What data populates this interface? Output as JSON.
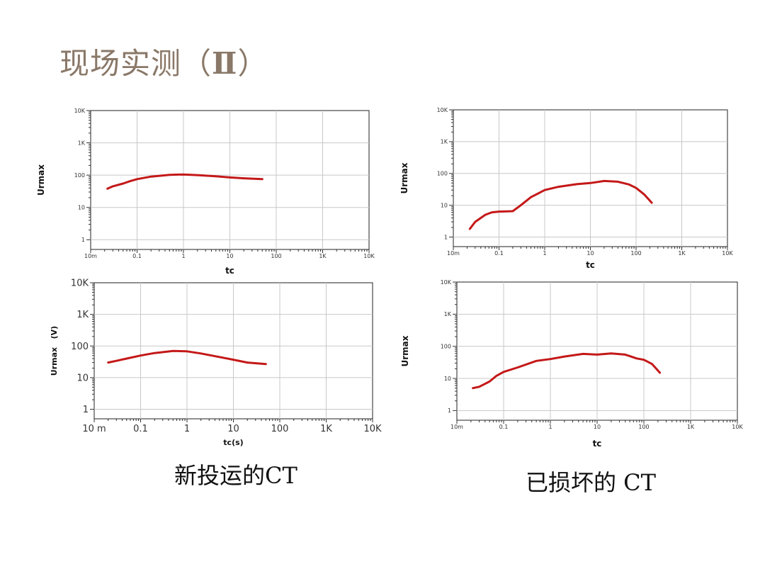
{
  "title": "现场实测（Ⅱ）",
  "title_main": "现场实测",
  "title_open": "（",
  "title_roman": "Ⅱ",
  "title_close": "）",
  "captions": {
    "left": "新投运的CT",
    "right": "已损坏的 CT"
  },
  "colors": {
    "curve": "#c41818",
    "title": "#8a7868"
  },
  "chart_data": [
    {
      "type": "line",
      "xscale": "log",
      "yscale": "log",
      "xlim": [
        0.01,
        10000
      ],
      "ylim": [
        0.5,
        10000
      ],
      "xticks": [
        "10m",
        "0.1",
        "1",
        "10",
        "100",
        "1K",
        "10K"
      ],
      "yticks": [
        "1",
        "10",
        "100",
        "1K",
        "10K"
      ],
      "xlabel": "tc",
      "ylabel": "Urmax",
      "grid": true,
      "series": [
        {
          "x": [
            0.023,
            0.03,
            0.05,
            0.07,
            0.1,
            0.2,
            0.5,
            1,
            2,
            5,
            10,
            20,
            50
          ],
          "y": [
            38,
            45,
            55,
            65,
            75,
            90,
            102,
            105,
            100,
            92,
            85,
            80,
            75
          ]
        }
      ]
    },
    {
      "type": "line",
      "xscale": "log",
      "yscale": "log",
      "xlim": [
        0.01,
        10000
      ],
      "ylim": [
        0.5,
        10000
      ],
      "xticks": [
        "10m",
        "0.1",
        "1",
        "10",
        "100",
        "1K",
        "10K"
      ],
      "yticks": [
        "1",
        "10",
        "100",
        "1K",
        "10K"
      ],
      "xlabel": "tc",
      "ylabel": "Urmax",
      "grid": true,
      "series": [
        {
          "x": [
            0.023,
            0.03,
            0.05,
            0.07,
            0.1,
            0.2,
            0.3,
            0.5,
            1,
            2,
            5,
            10,
            20,
            40,
            70,
            100,
            150,
            220
          ],
          "y": [
            1.8,
            3,
            5,
            6,
            6.3,
            6.5,
            10,
            18,
            30,
            38,
            46,
            50,
            58,
            55,
            45,
            35,
            22,
            12
          ]
        }
      ]
    },
    {
      "type": "line",
      "xscale": "log",
      "yscale": "log",
      "xlim": [
        0.01,
        10000
      ],
      "ylim": [
        0.5,
        10000
      ],
      "xticks": [
        "10 m",
        "0.1",
        "1",
        "10",
        "100",
        "1K",
        "10K"
      ],
      "yticks": [
        "1",
        "10",
        "100",
        "1K",
        "10K"
      ],
      "xlabel": "tc(s)",
      "ylabel": "Urmax   (V)",
      "grid": true,
      "series": [
        {
          "x": [
            0.02,
            0.03,
            0.05,
            0.1,
            0.2,
            0.5,
            1,
            2,
            5,
            10,
            20,
            50
          ],
          "y": [
            30,
            34,
            40,
            50,
            60,
            70,
            68,
            58,
            45,
            37,
            30,
            27
          ]
        }
      ]
    },
    {
      "type": "line",
      "xscale": "log",
      "yscale": "log",
      "xlim": [
        0.01,
        10000
      ],
      "ylim": [
        0.5,
        10000
      ],
      "xticks": [
        "10m",
        "0.1",
        "1",
        "10",
        "100",
        "1K",
        "10K"
      ],
      "yticks": [
        "1",
        "10",
        "100",
        "1K",
        "10K"
      ],
      "xlabel": "tc",
      "ylabel": "Urmax",
      "grid": true,
      "series": [
        {
          "x": [
            0.022,
            0.03,
            0.05,
            0.07,
            0.1,
            0.2,
            0.5,
            1,
            2,
            5,
            10,
            20,
            40,
            70,
            100,
            150,
            220
          ],
          "y": [
            5,
            5.5,
            8,
            12,
            16,
            22,
            35,
            40,
            48,
            58,
            55,
            60,
            55,
            42,
            38,
            28,
            15
          ]
        }
      ]
    }
  ]
}
